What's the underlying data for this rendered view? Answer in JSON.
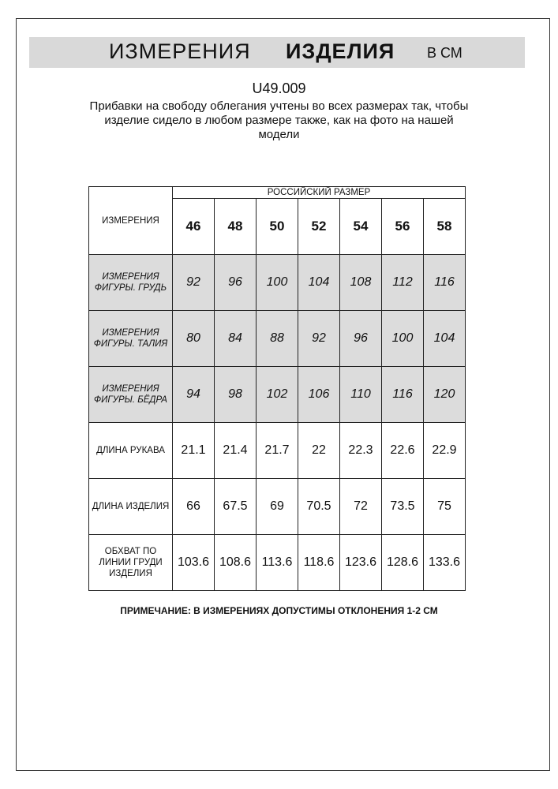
{
  "header": {
    "title_regular": "ИЗМЕРЕНИЯ",
    "title_bold": "ИЗДЕЛИЯ",
    "unit": "В СМ"
  },
  "article": "U49.009",
  "description": "Прибавки на свободу облегания учтены во всех размерах так, чтобы изделие сидело в любом размере также, как на фото на нашей модели",
  "table": {
    "corner": "ИЗМЕРЕНИЯ",
    "group_header": "РОССИЙСКИЙ РАЗМЕР",
    "sizes": [
      "46",
      "48",
      "50",
      "52",
      "54",
      "56",
      "58"
    ],
    "rows": [
      {
        "label": "ИЗМЕРЕНИЯ ФИГУРЫ. ГРУДЬ",
        "shaded": true,
        "values": [
          "92",
          "96",
          "100",
          "104",
          "108",
          "112",
          "116"
        ]
      },
      {
        "label": "ИЗМЕРЕНИЯ ФИГУРЫ. ТАЛИЯ",
        "shaded": true,
        "values": [
          "80",
          "84",
          "88",
          "92",
          "96",
          "100",
          "104"
        ]
      },
      {
        "label": "ИЗМЕРЕНИЯ ФИГУРЫ. БЁДРА",
        "shaded": true,
        "values": [
          "94",
          "98",
          "102",
          "106",
          "110",
          "116",
          "120"
        ]
      },
      {
        "label": "ДЛИНА РУКАВА",
        "shaded": false,
        "values": [
          "21.1",
          "21.4",
          "21.7",
          "22",
          "22.3",
          "22.6",
          "22.9"
        ]
      },
      {
        "label": "ДЛИНА ИЗДЕЛИЯ",
        "shaded": false,
        "values": [
          "66",
          "67.5",
          "69",
          "70.5",
          "72",
          "73.5",
          "75"
        ]
      },
      {
        "label": "ОБХВАТ ПО ЛИНИИ ГРУДИ ИЗДЕЛИЯ",
        "shaded": false,
        "values": [
          "103.6",
          "108.6",
          "113.6",
          "118.6",
          "123.6",
          "128.6",
          "133.6"
        ]
      }
    ]
  },
  "note": "ПРИМЕЧАНИЕ: В ИЗМЕРЕНИЯХ ДОПУСТИМЫ ОТКЛОНЕНИЯ 1-2 СМ"
}
